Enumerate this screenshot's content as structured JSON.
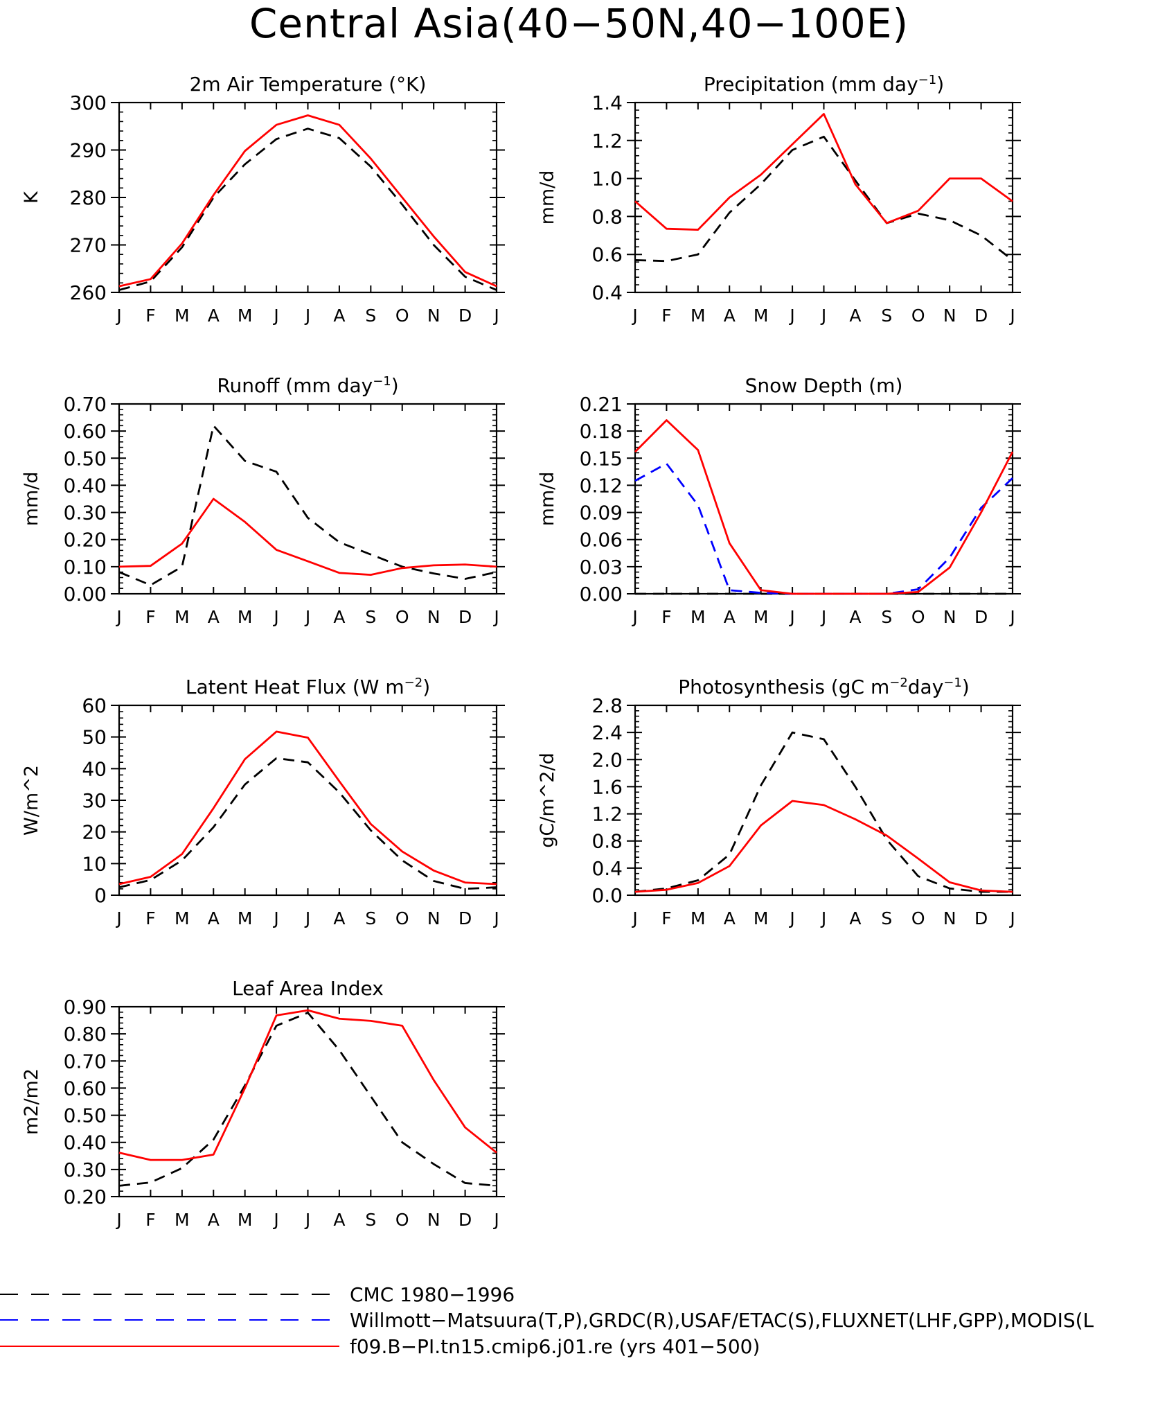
{
  "figure": {
    "title": "Central Asia(40−50N,40−100E)",
    "month_labels": [
      "J",
      "F",
      "M",
      "A",
      "M",
      "J",
      "J",
      "A",
      "S",
      "O",
      "N",
      "D",
      "J"
    ]
  },
  "legend": {
    "items": [
      {
        "label": "CMC 1980−1996",
        "color": "#000000",
        "dash": "dashed"
      },
      {
        "label": "Willmott−Matsuura(T,P),GRDC(R),USAF/ETAC(S),FLUXNET(LHF,GPP),MODIS(L",
        "color": "#0000ff",
        "dash": "dashed"
      },
      {
        "label": "f09.B−PI.tn15.cmip6.j01.re (yrs 401−500)",
        "color": "#ff0000",
        "dash": "solid"
      }
    ]
  },
  "colors": {
    "obs": "#000000",
    "obs2": "#0000ff",
    "model": "#ff0000"
  },
  "chart_data": [
    {
      "type": "line",
      "title": "2m Air Temperature (°K)",
      "ylabel": "K",
      "ylim": [
        260,
        300
      ],
      "yticks": [
        "260",
        "270",
        "280",
        "290",
        "300"
      ],
      "x": [
        "J",
        "F",
        "M",
        "A",
        "M",
        "J",
        "J",
        "A",
        "S",
        "O",
        "N",
        "D",
        "J"
      ],
      "series": [
        {
          "values": [
            260.5,
            262.3,
            269.5,
            280.0,
            287.0,
            292.3,
            294.5,
            292.5,
            286.5,
            278.5,
            270.0,
            263.3,
            260.5
          ],
          "color": "#000000",
          "dash": "dashed"
        },
        {
          "values": [
            261.3,
            262.8,
            270.3,
            280.5,
            289.8,
            295.3,
            297.3,
            295.3,
            288.2,
            280.0,
            271.8,
            264.3,
            261.3
          ],
          "color": "#ff0000",
          "dash": "solid"
        }
      ]
    },
    {
      "type": "line",
      "title": "Precipitation (mm day",
      "title_sup": "−1",
      "title_end": ")",
      "ylabel": "mm/d",
      "ylim": [
        0.4,
        1.4
      ],
      "yticks": [
        "0.4",
        "0.6",
        "0.8",
        "1.0",
        "1.2",
        "1.4"
      ],
      "x": [
        "J",
        "F",
        "M",
        "A",
        "M",
        "J",
        "J",
        "A",
        "S",
        "O",
        "N",
        "D",
        "J"
      ],
      "series": [
        {
          "values": [
            0.57,
            0.565,
            0.6,
            0.82,
            0.97,
            1.15,
            1.22,
            0.99,
            0.765,
            0.815,
            0.78,
            0.7,
            0.57
          ],
          "color": "#000000",
          "dash": "dashed"
        },
        {
          "values": [
            0.88,
            0.735,
            0.73,
            0.9,
            1.02,
            1.18,
            1.34,
            0.97,
            0.765,
            0.83,
            1.0,
            1.0,
            0.88
          ],
          "color": "#ff0000",
          "dash": "solid"
        }
      ]
    },
    {
      "type": "line",
      "title": "Runoff (mm day",
      "title_sup": "−1",
      "title_end": ")",
      "ylabel": "mm/d",
      "ylim": [
        0,
        0.7
      ],
      "yticks": [
        "0.00",
        "0.10",
        "0.20",
        "0.30",
        "0.40",
        "0.50",
        "0.60",
        "0.70"
      ],
      "x": [
        "J",
        "F",
        "M",
        "A",
        "M",
        "J",
        "J",
        "A",
        "S",
        "O",
        "N",
        "D",
        "J"
      ],
      "series": [
        {
          "values": [
            0.08,
            0.032,
            0.1,
            0.62,
            0.49,
            0.45,
            0.28,
            0.19,
            0.145,
            0.1,
            0.075,
            0.055,
            0.08
          ],
          "color": "#000000",
          "dash": "dashed"
        },
        {
          "values": [
            0.1,
            0.103,
            0.185,
            0.35,
            0.265,
            0.162,
            0.12,
            0.077,
            0.07,
            0.095,
            0.105,
            0.108,
            0.1
          ],
          "color": "#ff0000",
          "dash": "solid"
        }
      ]
    },
    {
      "type": "line",
      "title": "Snow Depth (m)",
      "ylabel": "mm/d",
      "ylim": [
        0,
        0.21
      ],
      "yticks": [
        "0.00",
        "0.03",
        "0.06",
        "0.09",
        "0.12",
        "0.15",
        "0.18",
        "0.21"
      ],
      "x": [
        "J",
        "F",
        "M",
        "A",
        "M",
        "J",
        "J",
        "A",
        "S",
        "O",
        "N",
        "D",
        "J"
      ],
      "series": [
        {
          "values": [
            0,
            0,
            0,
            0,
            0,
            0,
            0,
            0,
            0,
            0,
            0,
            0,
            0
          ],
          "color": "#000000",
          "dash": "dashed"
        },
        {
          "values": [
            0.125,
            0.144,
            0.098,
            0.004,
            0.001,
            0,
            0,
            0,
            0,
            0.005,
            0.04,
            0.095,
            0.128
          ],
          "color": "#0000ff",
          "dash": "dashed"
        },
        {
          "values": [
            0.157,
            0.192,
            0.159,
            0.056,
            0.004,
            0,
            0,
            0,
            0,
            0.002,
            0.029,
            0.09,
            0.157
          ],
          "color": "#ff0000",
          "dash": "solid"
        }
      ]
    },
    {
      "type": "line",
      "title": "Latent Heat Flux (W m",
      "title_sup": "−2",
      "title_end": ")",
      "ylabel": "W/m^2",
      "ylim": [
        0,
        60
      ],
      "yticks": [
        "0",
        "10",
        "20",
        "30",
        "40",
        "50",
        "60"
      ],
      "x": [
        "J",
        "F",
        "M",
        "A",
        "M",
        "J",
        "J",
        "A",
        "S",
        "O",
        "N",
        "D",
        "J"
      ],
      "series": [
        {
          "values": [
            2.5,
            4.8,
            11.0,
            21.5,
            35.0,
            43.3,
            42.0,
            32.5,
            20.5,
            11.0,
            4.5,
            2.0,
            2.5
          ],
          "color": "#000000",
          "dash": "dashed"
        },
        {
          "values": [
            3.5,
            5.8,
            13.0,
            27.5,
            43.0,
            51.7,
            49.8,
            36.0,
            22.5,
            13.8,
            7.8,
            4.0,
            3.5
          ],
          "color": "#ff0000",
          "dash": "solid"
        }
      ]
    },
    {
      "type": "line",
      "title": "Photosynthesis (gC m",
      "title_sup": "−2",
      "title_mid": "day",
      "title_sup2": "−1",
      "title_end": ")",
      "ylabel": "gC/m^2/d",
      "ylim": [
        0,
        2.8
      ],
      "yticks": [
        "0.0",
        "0.4",
        "0.8",
        "1.2",
        "1.6",
        "2.0",
        "2.4",
        "2.8"
      ],
      "x": [
        "J",
        "F",
        "M",
        "A",
        "M",
        "J",
        "J",
        "A",
        "S",
        "O",
        "N",
        "D",
        "J"
      ],
      "series": [
        {
          "values": [
            0.05,
            0.1,
            0.22,
            0.6,
            1.62,
            2.4,
            2.3,
            1.6,
            0.82,
            0.28,
            0.1,
            0.05,
            0.05
          ],
          "color": "#000000",
          "dash": "dashed"
        },
        {
          "values": [
            0.05,
            0.08,
            0.18,
            0.43,
            1.03,
            1.39,
            1.33,
            1.12,
            0.88,
            0.54,
            0.19,
            0.07,
            0.05
          ],
          "color": "#ff0000",
          "dash": "solid"
        }
      ]
    },
    {
      "type": "line",
      "title": "Leaf Area Index",
      "ylabel": "m2/m2",
      "ylim": [
        0.2,
        0.9
      ],
      "yticks": [
        "0.20",
        "0.30",
        "0.40",
        "0.50",
        "0.60",
        "0.70",
        "0.80",
        "0.90"
      ],
      "x": [
        "J",
        "F",
        "M",
        "A",
        "M",
        "J",
        "J",
        "A",
        "S",
        "O",
        "N",
        "D",
        "J"
      ],
      "series": [
        {
          "values": [
            0.24,
            0.252,
            0.305,
            0.41,
            0.61,
            0.83,
            0.878,
            0.74,
            0.57,
            0.4,
            0.32,
            0.25,
            0.24
          ],
          "color": "#000000",
          "dash": "dashed"
        },
        {
          "values": [
            0.362,
            0.335,
            0.335,
            0.355,
            0.6,
            0.868,
            0.887,
            0.856,
            0.848,
            0.83,
            0.63,
            0.455,
            0.362
          ],
          "color": "#ff0000",
          "dash": "solid"
        }
      ]
    }
  ]
}
